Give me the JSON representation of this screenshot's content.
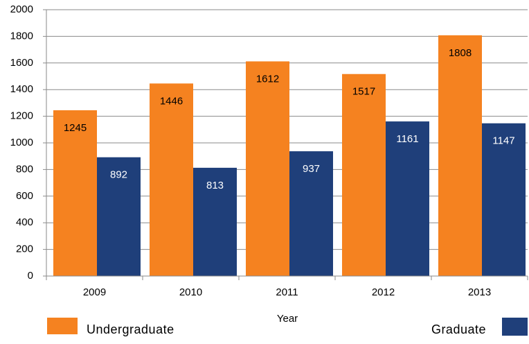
{
  "chart_data": {
    "type": "bar",
    "x_label": "Year",
    "categories": [
      "2009",
      "2010",
      "2011",
      "2012",
      "2013"
    ],
    "series": [
      {
        "name": "Undergraduate",
        "color": "#f58220",
        "values": [
          1245,
          1446,
          1612,
          1517,
          1808
        ]
      },
      {
        "name": "Graduate",
        "color": "#1f3f7a",
        "values": [
          892,
          813,
          937,
          1161,
          1147
        ]
      }
    ],
    "ylim": [
      0,
      2000
    ],
    "yticks": [
      0,
      200,
      400,
      600,
      800,
      1000,
      1200,
      1400,
      1600,
      1800,
      2000
    ],
    "grid": true
  }
}
